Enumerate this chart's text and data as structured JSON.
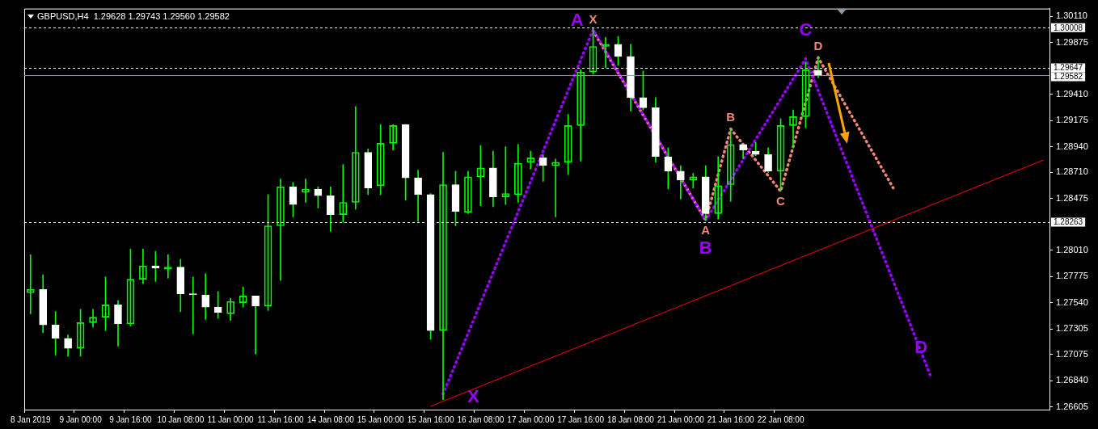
{
  "chart_data": {
    "type": "candlestick",
    "title": "GBPUSD,H4  1.29628 1.29743 1.29560 1.29582",
    "categories": [
      "8 Jan 2019",
      null,
      null,
      null,
      "9 Jan 00:00",
      null,
      null,
      null,
      "9 Jan 16:00",
      null,
      null,
      null,
      "10 Jan 08:00",
      null,
      null,
      null,
      "11 Jan 00:00",
      null,
      null,
      null,
      "11 Jan 16:00",
      null,
      null,
      null,
      "14 Jan 08:00",
      null,
      null,
      null,
      "15 Jan 00:00",
      null,
      null,
      null,
      "15 Jan 16:00",
      null,
      null,
      null,
      "16 Jan 08:00",
      null,
      null,
      null,
      "17 Jan 00:00",
      null,
      null,
      null,
      "17 Jan 16:00",
      null,
      null,
      null,
      "18 Jan 08:00",
      null,
      null,
      null,
      "21 Jan 00:00",
      null,
      null,
      null,
      "21 Jan 16:00",
      null,
      null,
      null,
      "22 Jan 08:00",
      null,
      null,
      null,
      null,
      null,
      null,
      null,
      null,
      null,
      null,
      null,
      null,
      null,
      null,
      null,
      null,
      null,
      null,
      null,
      null,
      null
    ],
    "ohlc": [
      [
        1.2763,
        1.2797,
        1.2744,
        1.2766
      ],
      [
        1.2766,
        1.2779,
        1.2727,
        1.2734
      ],
      [
        1.2734,
        1.2746,
        1.2707,
        1.2722
      ],
      [
        1.2722,
        1.2725,
        1.2706,
        1.2713
      ],
      [
        1.2713,
        1.2748,
        1.2706,
        1.2736
      ],
      [
        1.2736,
        1.2748,
        1.2732,
        1.2741
      ],
      [
        1.2741,
        1.2777,
        1.2729,
        1.2752
      ],
      [
        1.2752,
        1.2756,
        1.2715,
        1.2735
      ],
      [
        1.2735,
        1.2802,
        1.2733,
        1.2775
      ],
      [
        1.2775,
        1.2802,
        1.2771,
        1.2787
      ],
      [
        1.2787,
        1.28,
        1.2773,
        1.2785
      ],
      [
        1.2784,
        1.2797,
        1.2776,
        1.2786
      ],
      [
        1.2786,
        1.2793,
        1.2746,
        1.2762
      ],
      [
        1.2762,
        1.2777,
        1.2726,
        1.2761
      ],
      [
        1.2761,
        1.278,
        1.2739,
        1.275
      ],
      [
        1.275,
        1.2764,
        1.274,
        1.2745
      ],
      [
        1.2744,
        1.2758,
        1.2738,
        1.2755
      ],
      [
        1.2754,
        1.2768,
        1.275,
        1.276
      ],
      [
        1.276,
        1.276,
        1.2708,
        1.2751
      ],
      [
        1.2751,
        1.2851,
        1.2747,
        1.2823
      ],
      [
        1.2823,
        1.2865,
        1.2774,
        1.2858
      ],
      [
        1.2858,
        1.2862,
        1.2831,
        1.2842
      ],
      [
        1.2853,
        1.2865,
        1.2844,
        1.2856
      ],
      [
        1.2856,
        1.2858,
        1.2839,
        1.285
      ],
      [
        1.285,
        1.2858,
        1.2818,
        1.2833
      ],
      [
        1.2833,
        1.2878,
        1.2826,
        1.2844
      ],
      [
        1.2844,
        1.293,
        1.2838,
        1.2889
      ],
      [
        1.2889,
        1.2892,
        1.2851,
        1.2857
      ],
      [
        1.2859,
        1.2914,
        1.2851,
        1.2897
      ],
      [
        1.2897,
        1.2914,
        1.2891,
        1.2913
      ],
      [
        1.2914,
        1.2914,
        1.2846,
        1.2866
      ],
      [
        1.2866,
        1.2873,
        1.2827,
        1.2851
      ],
      [
        1.2851,
        1.2852,
        1.2721,
        1.2729
      ],
      [
        1.2729,
        1.2889,
        1.2667,
        1.286
      ],
      [
        1.286,
        1.2872,
        1.2823,
        1.2836
      ],
      [
        1.2835,
        1.2872,
        1.2834,
        1.2867
      ],
      [
        1.2867,
        1.2895,
        1.2841,
        1.2875
      ],
      [
        1.2875,
        1.289,
        1.284,
        1.2849
      ],
      [
        1.2849,
        1.2894,
        1.2842,
        1.2852
      ],
      [
        1.2851,
        1.2896,
        1.2844,
        1.2879
      ],
      [
        1.288,
        1.289,
        1.2874,
        1.2884
      ],
      [
        1.2884,
        1.2887,
        1.2863,
        1.2877
      ],
      [
        1.2877,
        1.2883,
        1.2831,
        1.288
      ],
      [
        1.288,
        1.2923,
        1.2869,
        1.2913
      ],
      [
        1.2913,
        1.2963,
        1.2881,
        1.2961
      ],
      [
        1.2961,
        1.3001,
        1.2959,
        1.2984
      ],
      [
        1.2984,
        1.2992,
        1.2965,
        1.2986
      ],
      [
        1.2986,
        1.2993,
        1.2967,
        1.2975
      ],
      [
        1.2975,
        1.2986,
        1.2926,
        1.2938
      ],
      [
        1.2938,
        1.2962,
        1.2927,
        1.2929
      ],
      [
        1.2929,
        1.2938,
        1.288,
        1.2885
      ],
      [
        1.2885,
        1.2893,
        1.2856,
        1.2872
      ],
      [
        1.2872,
        1.2877,
        1.2847,
        1.2864
      ],
      [
        1.2864,
        1.287,
        1.2857,
        1.2867
      ],
      [
        1.2867,
        1.2877,
        1.2828,
        1.2834
      ],
      [
        1.2834,
        1.2885,
        1.2829,
        1.2859
      ],
      [
        1.286,
        1.291,
        1.2845,
        1.2896
      ],
      [
        1.2896,
        1.2896,
        1.2883,
        1.2891
      ],
      [
        1.289,
        1.2898,
        1.2886,
        1.2887
      ],
      [
        1.2887,
        1.2893,
        1.2871,
        1.2872
      ],
      [
        1.2872,
        1.2919,
        1.2854,
        1.2913
      ],
      [
        1.2913,
        1.2927,
        1.2893,
        1.2921
      ],
      [
        1.2921,
        1.297,
        1.2911,
        1.2963
      ],
      [
        1.29628,
        1.29743,
        1.2956,
        1.29582
      ],
      null,
      null,
      null,
      null,
      null,
      null,
      null,
      null,
      null,
      null,
      null,
      null,
      null,
      null,
      null,
      null,
      null,
      null
    ],
    "color": "#00ff00",
    "colors": [
      "#00ff00",
      "#ffffff",
      "#ffffff",
      "#ffffff",
      "#00ff00",
      "#00ff00",
      "#00ff00",
      "#ffffff",
      "#00ff00",
      "#00ff00",
      "#ffffff",
      "#00ff00",
      "#ffffff",
      "#ffffff",
      "#ffffff",
      "#ffffff",
      "#00ff00",
      "#00ff00",
      "#ffffff",
      "#00ff00",
      "#00ff00",
      "#ffffff",
      "#00ff00",
      "#ffffff",
      "#ffffff",
      "#00ff00",
      "#00ff00",
      "#ffffff",
      "#00ff00",
      "#00ff00",
      "#ffffff",
      "#ffffff",
      "#ffffff",
      "#00ff00",
      "#ffffff",
      "#00ff00",
      "#00ff00",
      "#ffffff",
      "#00ff00",
      "#00ff00",
      "#00ff00",
      "#ffffff",
      "#00ff00",
      "#00ff00",
      "#00ff00",
      "#00ff00",
      "#00ff00",
      "#ffffff",
      "#ffffff",
      "#ffffff",
      "#ffffff",
      "#ffffff",
      "#ffffff",
      "#00ff00",
      "#ffffff",
      "#00ff00",
      "#00ff00",
      "#ffffff",
      "#ffffff",
      "#ffffff",
      "#00ff00",
      "#00ff00",
      "#00ff00",
      "#ffffff",
      null,
      null,
      null,
      null,
      null,
      null,
      null,
      null,
      null,
      null,
      null,
      null,
      null,
      null,
      null,
      null,
      null,
      null
    ],
    "series": [
      {
        "type": "line",
        "color": "#9900ff",
        "line_style": "dotted",
        "values": [
          null,
          null,
          null,
          null,
          null,
          null,
          null,
          null,
          null,
          null,
          null,
          null,
          null,
          null,
          null,
          null,
          null,
          null,
          null,
          null,
          null,
          null,
          null,
          null,
          null,
          null,
          null,
          null,
          null,
          null,
          null,
          null,
          null,
          1.2672,
          null,
          null,
          null,
          null,
          null,
          null,
          null,
          null,
          null,
          null,
          null,
          1.2999,
          null,
          null,
          null,
          null,
          null,
          null,
          null,
          null,
          1.2828,
          null,
          null,
          null,
          null,
          null,
          null,
          null,
          1.2973,
          null,
          null,
          null,
          null,
          null,
          null,
          null,
          null,
          null,
          1.2688,
          null,
          null,
          null,
          null,
          null,
          null,
          null,
          null,
          null
        ],
        "value_labels": [
          null,
          null,
          null,
          null,
          null,
          null,
          null,
          null,
          null,
          null,
          null,
          null,
          null,
          null,
          null,
          null,
          null,
          null,
          null,
          null,
          null,
          null,
          null,
          null,
          null,
          null,
          null,
          null,
          null,
          null,
          null,
          null,
          null,
          "X",
          null,
          null,
          null,
          null,
          null,
          null,
          null,
          null,
          null,
          null,
          null,
          "A",
          null,
          null,
          null,
          null,
          null,
          null,
          null,
          null,
          "B",
          null,
          null,
          null,
          null,
          null,
          null,
          null,
          "C",
          null,
          null,
          null,
          null,
          null,
          null,
          null,
          null,
          null,
          "D",
          null,
          null,
          null,
          null,
          null,
          null,
          null,
          null,
          null
        ]
      },
      {
        "type": "line",
        "color": "#f08878",
        "line_style": "dotted",
        "values": [
          null,
          null,
          null,
          null,
          null,
          null,
          null,
          null,
          null,
          null,
          null,
          null,
          null,
          null,
          null,
          null,
          null,
          null,
          null,
          null,
          null,
          null,
          null,
          null,
          null,
          null,
          null,
          null,
          null,
          null,
          null,
          null,
          null,
          null,
          null,
          null,
          null,
          null,
          null,
          null,
          null,
          null,
          null,
          null,
          null,
          1.2998,
          null,
          null,
          null,
          null,
          null,
          null,
          null,
          null,
          1.2828,
          null,
          1.291,
          null,
          null,
          null,
          1.2854,
          null,
          null,
          1.2974,
          null,
          null,
          null,
          null,
          null,
          1.2857,
          null,
          null,
          null,
          null,
          null,
          null,
          null,
          null,
          null,
          null,
          null,
          null
        ],
        "value_labels": [
          null,
          null,
          null,
          null,
          null,
          null,
          null,
          null,
          null,
          null,
          null,
          null,
          null,
          null,
          null,
          null,
          null,
          null,
          null,
          null,
          null,
          null,
          null,
          null,
          null,
          null,
          null,
          null,
          null,
          null,
          null,
          null,
          null,
          null,
          null,
          null,
          null,
          null,
          null,
          null,
          null,
          null,
          null,
          null,
          null,
          "X",
          null,
          null,
          null,
          null,
          null,
          null,
          null,
          null,
          "A",
          null,
          "B",
          null,
          null,
          null,
          "C",
          null,
          null,
          "D",
          null,
          null,
          null,
          null,
          null,
          null,
          null,
          null,
          null,
          null,
          null,
          null,
          null,
          null,
          null,
          null,
          null,
          null
        ]
      },
      {
        "type": "line",
        "color": "#ff0000",
        "line_style": "solid",
        "values": [
          null,
          null,
          null,
          null,
          null,
          null,
          null,
          null,
          null,
          null,
          null,
          null,
          null,
          null,
          null,
          null,
          null,
          null,
          null,
          null,
          null,
          null,
          null,
          null,
          null,
          null,
          null,
          null,
          null,
          null,
          null,
          null,
          1.2661,
          null,
          null,
          null,
          null,
          null,
          null,
          null,
          null,
          null,
          null,
          null,
          null,
          null,
          null,
          null,
          null,
          null,
          null,
          null,
          null,
          null,
          null,
          null,
          null,
          null,
          null,
          null,
          null,
          null,
          null,
          null,
          null,
          null,
          null,
          null,
          null,
          null,
          null,
          null,
          null,
          null,
          null,
          null,
          null,
          null,
          null,
          null,
          null,
          1.2882
        ]
      }
    ],
    "ylim": [
      1.2658,
      1.3018
    ],
    "yticks": [
      {
        "value": 1.3011,
        "label": "1.30110"
      },
      {
        "value": 1.29875,
        "label": "1.29875"
      },
      {
        "value": 1.2941,
        "label": "1.29410"
      },
      {
        "value": 1.29175,
        "label": "1.29175"
      },
      {
        "value": 1.2894,
        "label": "1.28940"
      },
      {
        "value": 1.2871,
        "label": "1.28710"
      },
      {
        "value": 1.28475,
        "label": "1.28475"
      },
      {
        "value": 1.2801,
        "label": "1.28010"
      },
      {
        "value": 1.27775,
        "label": "1.27775"
      },
      {
        "value": 1.2754,
        "label": "1.27540"
      },
      {
        "value": 1.27305,
        "label": "1.27305"
      },
      {
        "value": 1.27075,
        "label": "1.27075"
      },
      {
        "value": 1.2684,
        "label": "1.26840"
      },
      {
        "value": 1.26605,
        "label": "1.26605"
      }
    ],
    "ref_lines": [
      {
        "axis": "y",
        "value": 1.30008,
        "label": "1.30008",
        "color": "#ffffff",
        "line_style": "dashed"
      },
      {
        "axis": "y",
        "value": 1.29647,
        "label": "1.29647",
        "color": "#ffffff",
        "line_style": "dashed"
      },
      {
        "axis": "y",
        "value": 1.29582,
        "label": "1.29582",
        "color": "#8899aa",
        "line_style": "solid"
      },
      {
        "axis": "y",
        "value": 1.28263,
        "label": "1.28263",
        "color": "#ffffff",
        "line_style": "dashed"
      }
    ]
  }
}
